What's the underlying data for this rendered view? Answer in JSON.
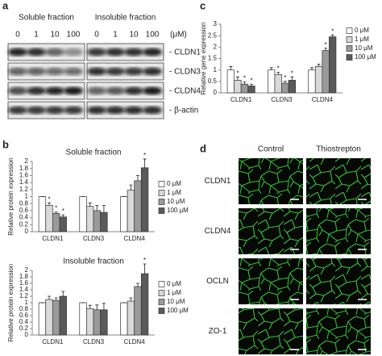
{
  "panel_labels": [
    "a",
    "b",
    "c",
    "d"
  ],
  "blot": {
    "fractions": [
      "Soluble fraction",
      "Insoluble fraction"
    ],
    "concentrations": [
      "0",
      "1",
      "10",
      "100"
    ],
    "unit": "(μM)",
    "bands": [
      "- CLDN1",
      "- CLDN3",
      "- CLDN4",
      "- β-actin"
    ]
  },
  "microscopy": {
    "columns": [
      "Control",
      "Thiostrepton"
    ],
    "rows": [
      "CLDN1",
      "CLDN4",
      "OCLN",
      "ZO-1"
    ]
  },
  "chart_data": [
    {
      "type": "bar",
      "title": "Soluble fraction",
      "y_label": "Relative protein expression",
      "categories": [
        "CLDN1",
        "CLDN3",
        "CLDN4"
      ],
      "series": [
        {
          "name": "0 μM",
          "color": "#ffffff",
          "values": [
            1,
            1,
            1
          ],
          "errors": [
            0,
            0,
            0
          ],
          "significance": [
            null,
            null,
            null
          ]
        },
        {
          "name": "1 μM",
          "color": "#d9d9d9",
          "values": [
            0.75,
            0.72,
            1.18
          ],
          "errors": [
            0.07,
            0.1,
            0.15
          ],
          "significance": [
            "*",
            null,
            null
          ]
        },
        {
          "name": "10 μM",
          "color": "#9a9a9a",
          "values": [
            0.52,
            0.6,
            1.45
          ],
          "errors": [
            0.04,
            0.15,
            0.15
          ],
          "significance": [
            "*",
            null,
            null
          ]
        },
        {
          "name": "100 μM",
          "color": "#5a5a5a",
          "values": [
            0.42,
            0.55,
            1.82
          ],
          "errors": [
            0.06,
            0.2,
            0.25
          ],
          "significance": [
            "*",
            null,
            "*"
          ]
        }
      ],
      "ylim": [
        0,
        2
      ],
      "yticks": [
        0,
        0.2,
        0.4,
        0.6,
        0.8,
        1,
        1.2,
        1.4,
        1.6,
        1.8,
        2
      ]
    },
    {
      "type": "bar",
      "title": "Insoluble fraction",
      "y_label": "Relative protein expression",
      "categories": [
        "CLDN1",
        "CLDN3",
        "CLDN4"
      ],
      "series": [
        {
          "name": "0 μM",
          "color": "#ffffff",
          "values": [
            1,
            1,
            1
          ],
          "errors": [
            0,
            0,
            0
          ],
          "significance": [
            null,
            null,
            null
          ]
        },
        {
          "name": "1 μM",
          "color": "#d9d9d9",
          "values": [
            1.1,
            0.82,
            1.05
          ],
          "errors": [
            0.1,
            0.1,
            0.1
          ],
          "significance": [
            null,
            null,
            null
          ]
        },
        {
          "name": "10 μM",
          "color": "#9a9a9a",
          "values": [
            1.07,
            0.78,
            1.5
          ],
          "errors": [
            0.08,
            0.15,
            0.1
          ],
          "significance": [
            null,
            null,
            null
          ]
        },
        {
          "name": "100 μM",
          "color": "#5a5a5a",
          "values": [
            1.2,
            0.78,
            1.9
          ],
          "errors": [
            0.15,
            0.2,
            0.3
          ],
          "significance": [
            null,
            null,
            "*"
          ]
        }
      ],
      "ylim": [
        0,
        2
      ],
      "yticks": [
        0,
        0.2,
        0.4,
        0.6,
        0.8,
        1,
        1.2,
        1.4,
        1.6,
        1.8,
        2
      ]
    },
    {
      "type": "bar",
      "y_label": "Relative gene expression",
      "categories": [
        "CLDN1",
        "CLDN3",
        "CLDN4"
      ],
      "series": [
        {
          "name": "0 μM",
          "color": "#ffffff",
          "values": [
            1,
            1,
            1
          ],
          "errors": [
            0.15,
            0.1,
            0.1
          ],
          "significance": [
            null,
            null,
            null
          ]
        },
        {
          "name": "1 μM",
          "color": "#d9d9d9",
          "values": [
            0.55,
            0.8,
            1.15
          ],
          "errors": [
            0.15,
            0.1,
            0.1
          ],
          "significance": [
            "*",
            "*",
            null
          ]
        },
        {
          "name": "10 μM",
          "color": "#9a9a9a",
          "values": [
            0.38,
            0.42,
            1.85
          ],
          "errors": [
            0.1,
            0.08,
            0.1
          ],
          "significance": [
            "*",
            "*",
            "*"
          ]
        },
        {
          "name": "100 μM",
          "color": "#5a5a5a",
          "values": [
            0.3,
            0.55,
            2.45
          ],
          "errors": [
            0.08,
            0.15,
            0.08
          ],
          "significance": [
            "*",
            "*",
            "*"
          ]
        }
      ],
      "ylim": [
        0,
        3
      ],
      "yticks": [
        0,
        0.5,
        1,
        1.5,
        2,
        2.5,
        3
      ]
    }
  ]
}
